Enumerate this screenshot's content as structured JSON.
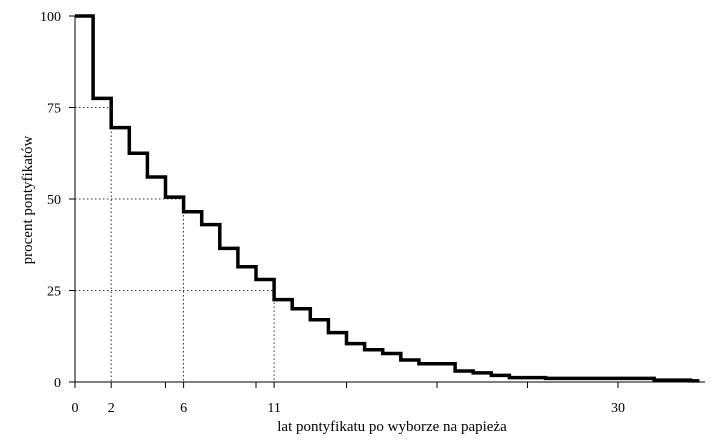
{
  "chart_data": {
    "type": "line",
    "step": true,
    "xlabel": "lat pontyfikatu po wyborze na papieża",
    "ylabel": "procent pontyfikatów",
    "xlim": [
      0,
      34
    ],
    "ylim": [
      0,
      100
    ],
    "x_ticks": [
      0,
      2,
      6,
      11,
      30
    ],
    "x_minor_ticks": [
      5,
      10,
      15,
      20,
      25
    ],
    "y_ticks": [
      0,
      25,
      50,
      75,
      100
    ],
    "grid": false,
    "reference_lines": [
      {
        "x": 2,
        "y": 75
      },
      {
        "x": 6,
        "y": 50
      },
      {
        "x": 11,
        "y": 25
      }
    ],
    "series": [
      {
        "x": [
          0,
          1,
          2,
          3,
          4,
          5,
          6,
          7,
          8,
          9,
          10,
          11,
          12,
          13,
          14,
          15,
          16,
          17,
          18,
          19,
          20,
          21,
          22,
          23,
          24,
          25,
          26,
          27,
          28,
          29,
          30,
          31,
          32,
          33,
          34
        ],
        "y": [
          100,
          77.5,
          69.5,
          62.5,
          56,
          50.5,
          46.5,
          43,
          36.5,
          31.5,
          28,
          22.5,
          20,
          17,
          13.5,
          10.5,
          8.8,
          7.8,
          6,
          5,
          5,
          3,
          2.5,
          1.8,
          1.2,
          1.2,
          1,
          1,
          1,
          1,
          1,
          1,
          0.5,
          0.5,
          0.3
        ]
      }
    ]
  }
}
